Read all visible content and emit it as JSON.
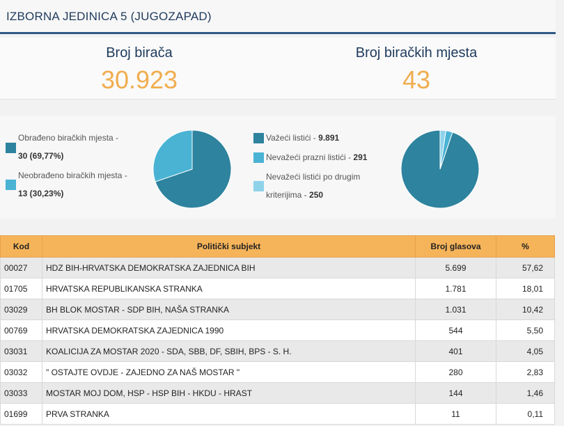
{
  "header": {
    "title": "IZBORNA JEDINICA 5 (JUGOZAPAD)"
  },
  "stats": {
    "voters_label": "Broj birača",
    "voters_value": "30.923",
    "stations_label": "Broj biračkih mjesta",
    "stations_value": "43"
  },
  "colors": {
    "dark": "#2e839e",
    "medium": "#4ab3d4",
    "light": "#8fd3ea",
    "accent": "#f0ad4e",
    "header_bg": "#f6b45a"
  },
  "pie1": {
    "items": [
      {
        "label": "Obrađeno biračkih mjesta -",
        "value": "30 (69,77%)",
        "color": "dark",
        "fraction": 0.6977
      },
      {
        "label": "Neobrađeno biračkih mjesta -",
        "value": "13 (30,23%)",
        "color": "medium",
        "fraction": 0.3023
      }
    ]
  },
  "pie2": {
    "items": [
      {
        "label": "Važeći listići -",
        "value": "9.891",
        "color": "dark",
        "count": 9891
      },
      {
        "label": "Nevažeći prazni listići -",
        "value": "291",
        "color": "medium",
        "count": 291
      },
      {
        "label1": "Nevažeći listići po drugim",
        "label2": "kriterijima -",
        "value": "250",
        "color": "light",
        "count": 250
      }
    ]
  },
  "table": {
    "headers": [
      "Kod",
      "Politički subjekt",
      "Broj glasova",
      "%"
    ],
    "rows": [
      {
        "kod": "00027",
        "subjekt": "HDZ BIH-HRVATSKA DEMOKRATSKA ZAJEDNICA BIH",
        "glasovi": "5.699",
        "pct": "57,62"
      },
      {
        "kod": "01705",
        "subjekt": "HRVATSKA REPUBLIKANSKA STRANKA",
        "glasovi": "1.781",
        "pct": "18,01"
      },
      {
        "kod": "03029",
        "subjekt": "BH BLOK MOSTAR - SDP BIH, NAŠA STRANKA",
        "glasovi": "1.031",
        "pct": "10,42"
      },
      {
        "kod": "00769",
        "subjekt": "HRVATSKA DEMOKRATSKA ZAJEDNICA 1990",
        "glasovi": "544",
        "pct": "5,50"
      },
      {
        "kod": "03031",
        "subjekt": "KOALICIJA ZA MOSTAR 2020 - SDA, SBB, DF, SBIH, BPS - S. H.",
        "glasovi": "401",
        "pct": "4,05"
      },
      {
        "kod": "03032",
        "subjekt": "\" OSTAJTE OVDJE - ZAJEDNO ZA NAŠ MOSTAR \"",
        "glasovi": "280",
        "pct": "2,83"
      },
      {
        "kod": "03033",
        "subjekt": "MOSTAR MOJ DOM, HSP - HSP BIH - HKDU - HRAST",
        "glasovi": "144",
        "pct": "1,46"
      },
      {
        "kod": "01699",
        "subjekt": "PRVA STRANKA",
        "glasovi": "11",
        "pct": "0,11"
      }
    ]
  }
}
